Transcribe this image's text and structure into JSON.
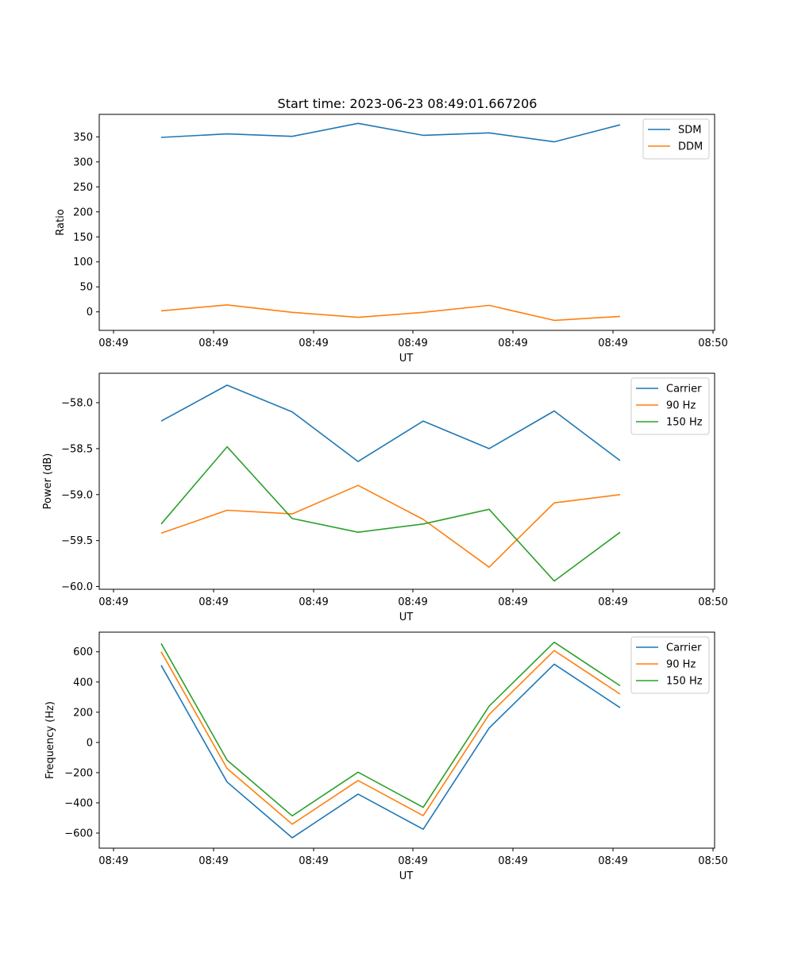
{
  "figure": {
    "title": "Start time: 2023-06-23 08:49:01.667206"
  },
  "chart_data": [
    {
      "type": "line",
      "title": "Start time: 2023-06-23 08:49:01.667206",
      "xlabel": "UT",
      "ylabel": "Ratio",
      "x_tick_labels": [
        "08:49",
        "08:49",
        "08:49",
        "08:49",
        "08:49",
        "08:49",
        "08:50"
      ],
      "y_ticks": [
        0,
        50,
        100,
        150,
        200,
        250,
        300,
        350
      ],
      "ylim": [
        -37,
        395
      ],
      "legend_position": "top-right",
      "grid": false,
      "series": [
        {
          "name": "SDM",
          "color": "#1f77b4",
          "values": [
            349,
            356,
            351,
            377,
            353,
            358,
            340,
            374
          ]
        },
        {
          "name": "DDM",
          "color": "#ff7f0e",
          "values": [
            2,
            14,
            -1,
            -11,
            -1,
            13,
            -17,
            -9
          ]
        }
      ]
    },
    {
      "type": "line",
      "title": "",
      "xlabel": "UT",
      "ylabel": "Power (dB)",
      "x_tick_labels": [
        "08:49",
        "08:49",
        "08:49",
        "08:49",
        "08:49",
        "08:49",
        "08:50"
      ],
      "y_ticks": [
        -60.0,
        -59.5,
        -59.0,
        -58.5,
        -58.0
      ],
      "y_tick_labels": [
        "−60.0",
        "−59.5",
        "−59.0",
        "−58.5",
        "−58.0"
      ],
      "ylim": [
        -60.03,
        -57.68
      ],
      "legend_position": "top-right",
      "grid": false,
      "series": [
        {
          "name": "Carrier",
          "color": "#1f77b4",
          "values": [
            -58.2,
            -57.81,
            -58.1,
            -58.64,
            -58.2,
            -58.5,
            -58.09,
            -58.63
          ]
        },
        {
          "name": "90 Hz",
          "color": "#ff7f0e",
          "values": [
            -59.42,
            -59.17,
            -59.21,
            -58.9,
            -59.27,
            -59.79,
            -59.09,
            -59.0
          ]
        },
        {
          "name": "150 Hz",
          "color": "#2ca02c",
          "values": [
            -59.32,
            -58.48,
            -59.26,
            -59.41,
            -59.32,
            -59.16,
            -59.94,
            -59.41
          ]
        }
      ]
    },
    {
      "type": "line",
      "title": "",
      "xlabel": "UT",
      "ylabel": "Frequency (Hz)",
      "x_tick_labels": [
        "08:49",
        "08:49",
        "08:49",
        "08:49",
        "08:49",
        "08:49",
        "08:50"
      ],
      "y_ticks": [
        -600,
        -400,
        -200,
        0,
        200,
        400,
        600
      ],
      "y_tick_labels": [
        "−600",
        "−400",
        "−200",
        "0",
        "200",
        "400",
        "600"
      ],
      "ylim": [
        -700,
        730
      ],
      "legend_position": "top-right",
      "grid": false,
      "series": [
        {
          "name": "Carrier",
          "color": "#1f77b4",
          "values": [
            510,
            -262,
            -631,
            -342,
            -575,
            95,
            518,
            230
          ]
        },
        {
          "name": "90 Hz",
          "color": "#ff7f0e",
          "values": [
            600,
            -172,
            -541,
            -252,
            -485,
            185,
            608,
            320
          ]
        },
        {
          "name": "150 Hz",
          "color": "#2ca02c",
          "values": [
            655,
            -117,
            -486,
            -197,
            -430,
            240,
            663,
            375
          ]
        }
      ]
    }
  ]
}
